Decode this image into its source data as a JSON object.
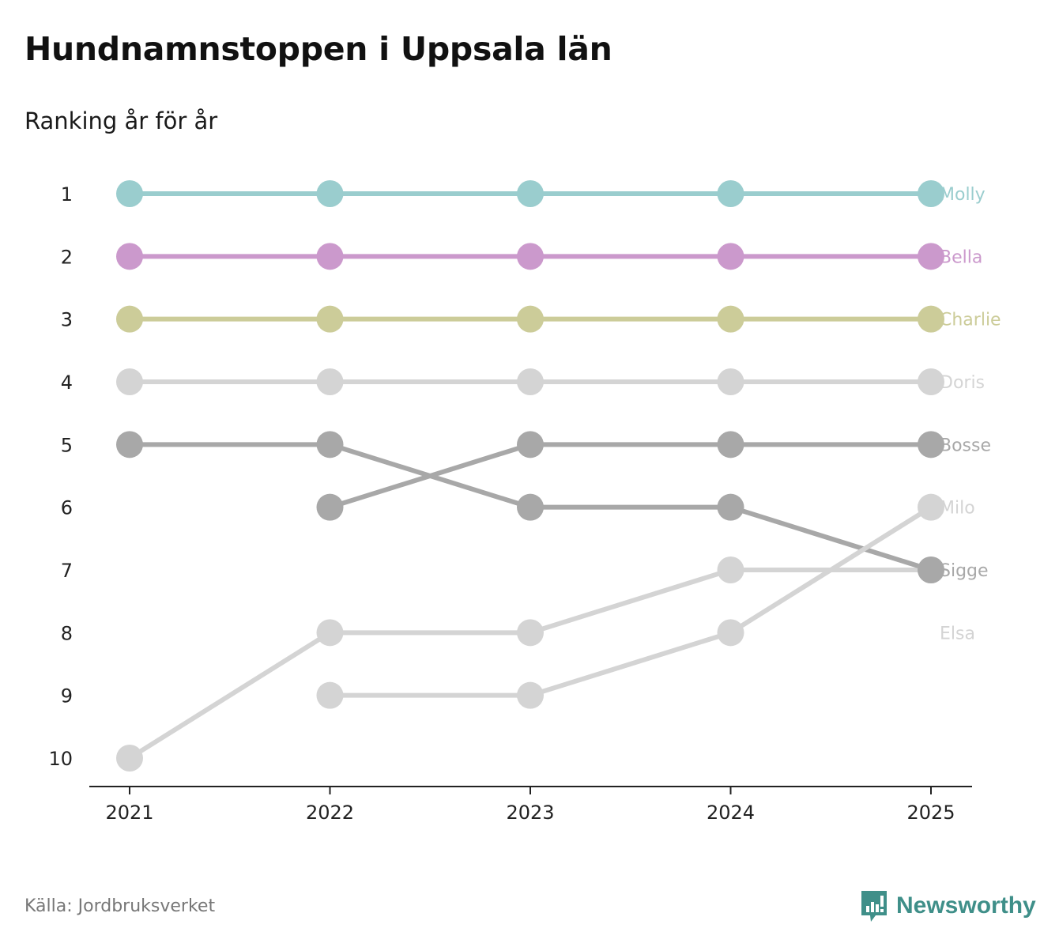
{
  "title": "Hundnamnstoppen i Uppsala län",
  "subtitle": "Ranking år för år",
  "source": "Källa: Jordbruksverket",
  "brand": "Newsworthy",
  "chart_data": {
    "type": "line",
    "title": "Hundnamnstoppen i Uppsala län",
    "subtitle": "Ranking år för år",
    "xlabel": "",
    "ylabel": "",
    "categories": [
      "2021",
      "2022",
      "2023",
      "2024",
      "2025"
    ],
    "y_ticks": [
      1,
      2,
      3,
      4,
      5,
      6,
      7,
      8,
      9,
      10
    ],
    "ylim": [
      1,
      10
    ],
    "y_inverted": true,
    "series": [
      {
        "name": "Molly",
        "color": "#9acdce",
        "values": [
          1,
          1,
          1,
          1,
          1
        ],
        "label_rank": 1
      },
      {
        "name": "Bella",
        "color": "#cb99cc",
        "values": [
          2,
          2,
          2,
          2,
          2
        ],
        "label_rank": 2
      },
      {
        "name": "Charlie",
        "color": "#cccc99",
        "values": [
          3,
          3,
          3,
          3,
          3
        ],
        "label_rank": 3
      },
      {
        "name": "Doris",
        "color": "#d4d4d4",
        "values": [
          4,
          4,
          4,
          4,
          4
        ],
        "label_rank": 4
      },
      {
        "name": "Bosse",
        "color": "#a8a8a8",
        "values": [
          null,
          6,
          5,
          5,
          5
        ],
        "label_rank": 5
      },
      {
        "name": "Milo",
        "color": "#d4d4d4",
        "values": [
          null,
          9,
          9,
          8,
          6
        ],
        "label_rank": 6
      },
      {
        "name": "Sigge",
        "color": "#a8a8a8",
        "values": [
          5,
          5,
          6,
          6,
          7
        ],
        "label_rank": 7
      },
      {
        "name": "Elsa",
        "color": "#d4d4d4",
        "values": [
          10,
          8,
          8,
          7,
          7
        ],
        "label_rank": 8
      }
    ]
  }
}
